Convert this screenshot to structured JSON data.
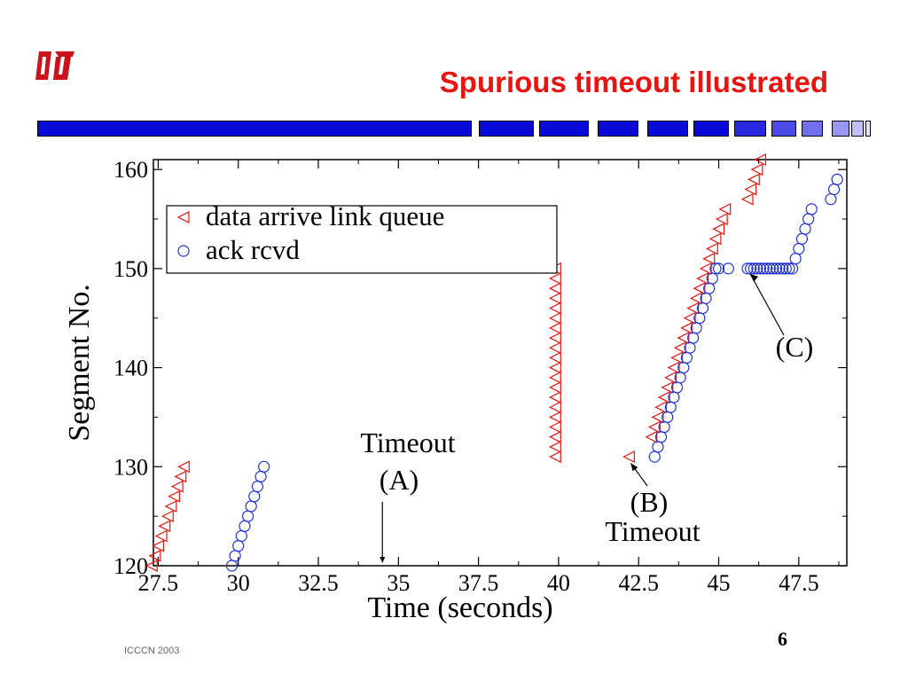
{
  "slide": {
    "title": "Spurious timeout illustrated",
    "footer": "ICCCN 2003",
    "page_number": "6",
    "colors": {
      "title": "#e8140f",
      "bar": "#0a0ad8",
      "data_series": "#e8140f",
      "ack_series": "#2233dd"
    }
  },
  "chart_data": {
    "type": "scatter",
    "xlabel": "Time (seconds)",
    "ylabel": "Segment No.",
    "xlim": [
      27,
      49
    ],
    "ylim": [
      120,
      161
    ],
    "xticks": [
      "27.5",
      "30",
      "32.5",
      "35",
      "37.5",
      "40",
      "42.5",
      "45",
      "47.5"
    ],
    "yticks": [
      "120",
      "130",
      "140",
      "150",
      "160"
    ],
    "legend_position": "top-left",
    "series": [
      {
        "name": "data arrive link queue",
        "marker": "triangle-left",
        "color": "#e8140f",
        "points": [
          [
            27.3,
            120
          ],
          [
            27.4,
            121
          ],
          [
            27.5,
            122
          ],
          [
            27.6,
            123
          ],
          [
            27.7,
            124
          ],
          [
            27.8,
            125
          ],
          [
            27.9,
            126
          ],
          [
            28.0,
            127
          ],
          [
            28.1,
            128
          ],
          [
            28.2,
            129
          ],
          [
            28.3,
            130
          ],
          [
            39.9,
            131
          ],
          [
            39.9,
            132
          ],
          [
            39.9,
            133
          ],
          [
            39.9,
            134
          ],
          [
            39.9,
            135
          ],
          [
            39.9,
            136
          ],
          [
            39.9,
            137
          ],
          [
            39.9,
            138
          ],
          [
            39.9,
            139
          ],
          [
            39.9,
            140
          ],
          [
            39.9,
            141
          ],
          [
            39.9,
            142
          ],
          [
            39.9,
            143
          ],
          [
            39.9,
            144
          ],
          [
            39.9,
            145
          ],
          [
            39.9,
            146
          ],
          [
            39.9,
            147
          ],
          [
            39.9,
            148
          ],
          [
            39.9,
            149
          ],
          [
            39.9,
            150
          ],
          [
            42.2,
            131
          ],
          [
            42.9,
            133
          ],
          [
            43.0,
            134
          ],
          [
            43.1,
            135
          ],
          [
            43.2,
            136
          ],
          [
            43.3,
            137
          ],
          [
            43.4,
            138
          ],
          [
            43.5,
            139
          ],
          [
            43.6,
            140
          ],
          [
            43.7,
            141
          ],
          [
            43.8,
            142
          ],
          [
            43.9,
            143
          ],
          [
            44.0,
            144
          ],
          [
            44.1,
            145
          ],
          [
            44.2,
            146
          ],
          [
            44.3,
            147
          ],
          [
            44.4,
            148
          ],
          [
            44.5,
            149
          ],
          [
            44.6,
            150
          ],
          [
            44.7,
            151
          ],
          [
            44.8,
            152
          ],
          [
            44.9,
            153
          ],
          [
            45.0,
            154
          ],
          [
            45.1,
            155
          ],
          [
            45.2,
            156
          ],
          [
            45.9,
            157
          ],
          [
            46.0,
            158
          ],
          [
            46.1,
            159
          ],
          [
            46.2,
            160
          ],
          [
            46.3,
            161
          ]
        ]
      },
      {
        "name": "ack rcvd",
        "marker": "circle",
        "color": "#2233dd",
        "points": [
          [
            29.8,
            120
          ],
          [
            29.9,
            121
          ],
          [
            30.0,
            122
          ],
          [
            30.1,
            123
          ],
          [
            30.2,
            124
          ],
          [
            30.3,
            125
          ],
          [
            30.4,
            126
          ],
          [
            30.5,
            127
          ],
          [
            30.6,
            128
          ],
          [
            30.7,
            129
          ],
          [
            30.8,
            130
          ],
          [
            43.0,
            131
          ],
          [
            43.1,
            132
          ],
          [
            43.2,
            133
          ],
          [
            43.3,
            134
          ],
          [
            43.4,
            135
          ],
          [
            43.5,
            136
          ],
          [
            43.6,
            137
          ],
          [
            43.7,
            138
          ],
          [
            43.8,
            139
          ],
          [
            43.9,
            140
          ],
          [
            44.0,
            141
          ],
          [
            44.1,
            142
          ],
          [
            44.2,
            143
          ],
          [
            44.3,
            144
          ],
          [
            44.4,
            145
          ],
          [
            44.5,
            146
          ],
          [
            44.6,
            147
          ],
          [
            44.7,
            148
          ],
          [
            44.8,
            149
          ],
          [
            44.9,
            150
          ],
          [
            45.0,
            150
          ],
          [
            45.3,
            150
          ],
          [
            45.9,
            150
          ],
          [
            46.0,
            150
          ],
          [
            46.1,
            150
          ],
          [
            46.2,
            150
          ],
          [
            46.3,
            150
          ],
          [
            46.4,
            150
          ],
          [
            46.5,
            150
          ],
          [
            46.6,
            150
          ],
          [
            46.7,
            150
          ],
          [
            46.8,
            150
          ],
          [
            46.9,
            150
          ],
          [
            47.0,
            150
          ],
          [
            47.1,
            150
          ],
          [
            47.2,
            150
          ],
          [
            47.3,
            150
          ],
          [
            47.4,
            151
          ],
          [
            47.5,
            152
          ],
          [
            47.6,
            153
          ],
          [
            47.7,
            154
          ],
          [
            47.8,
            155
          ],
          [
            47.9,
            156
          ],
          [
            48.5,
            157
          ],
          [
            48.6,
            158
          ],
          [
            48.7,
            159
          ]
        ]
      }
    ],
    "annotations": [
      {
        "id": "A",
        "lines": [
          "Timeout",
          "(A)"
        ],
        "point": [
          34.5,
          120
        ]
      },
      {
        "id": "B",
        "lines": [
          "(B)",
          "Timeout"
        ],
        "point": [
          42.2,
          130
        ]
      },
      {
        "id": "C",
        "lines": [
          "(C)"
        ],
        "point": [
          45.9,
          150
        ]
      }
    ]
  }
}
